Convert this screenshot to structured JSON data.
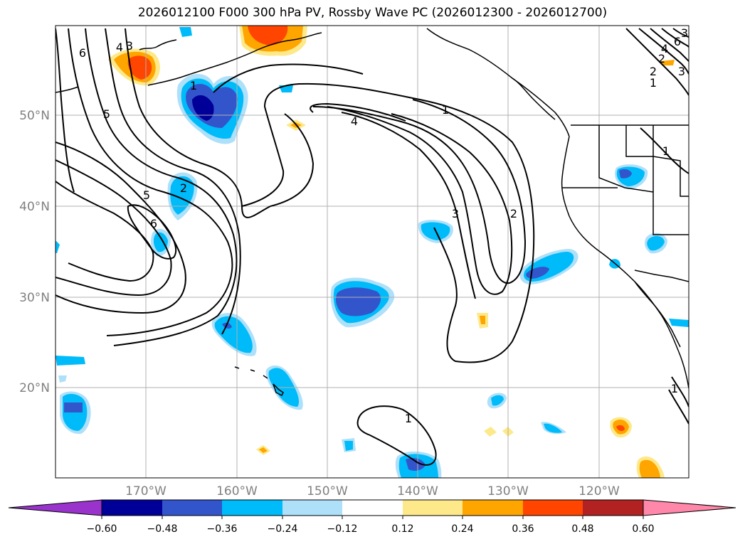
{
  "title": "2026012100 F000 300 hPa PV, Rossby Wave PC (2026012300 - 2026012700)",
  "latitude_labels": [
    "50°N",
    "40°N",
    "30°N",
    "20°N"
  ],
  "longitude_labels": [
    "170°W",
    "160°W",
    "150°W",
    "140°W",
    "130°W",
    "120°W"
  ],
  "colorbar": {
    "ticks": [
      "−0.60",
      "−0.48",
      "−0.36",
      "−0.24",
      "−0.12",
      "0.12",
      "0.24",
      "0.36",
      "0.48",
      "0.60"
    ],
    "colors": [
      "#9933cc",
      "#000099",
      "#3355cc",
      "#00bbf9",
      "#aee0fa",
      "#ffffff",
      "#fde98a",
      "#ffa500",
      "#ff4500",
      "#b22222",
      "#ff88aa"
    ]
  },
  "contour_labels": [
    "6",
    "3",
    "4",
    "5",
    "1",
    "4",
    "1",
    "2",
    "5",
    "6",
    "3",
    "2",
    "1",
    "2",
    "3",
    "6",
    "4",
    "2",
    "3",
    "1",
    "1",
    "1"
  ],
  "colors": {
    "coast": "#000000",
    "grid": "#b0b0b0",
    "contour": "#000000"
  }
}
